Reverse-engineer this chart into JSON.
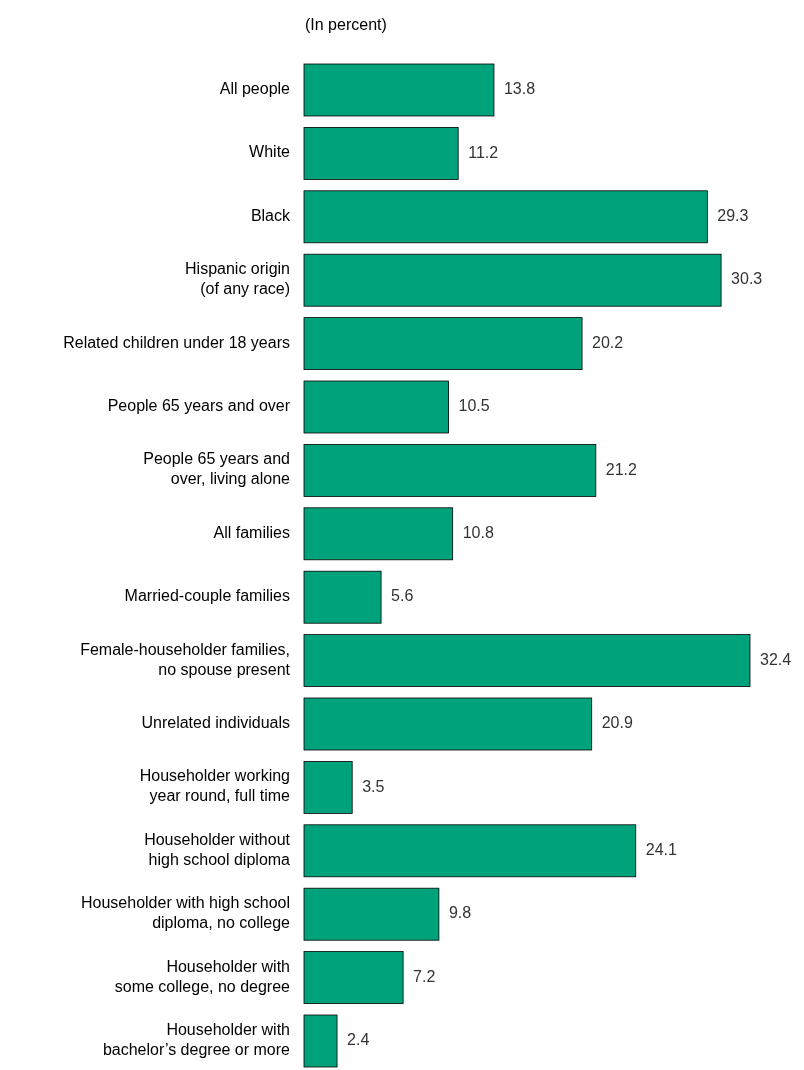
{
  "chart_data": {
    "type": "bar",
    "orientation": "horizontal",
    "subtitle": "(In percent)",
    "data_labels": true,
    "color": "#00a27b",
    "categories": [
      "All people",
      "White",
      "Black",
      "Hispanic origin\n(of any race)",
      "Related children under 18 years",
      "People 65 years and over",
      "People 65 years and\nover, living alone",
      "All families",
      "Married-couple families",
      "Female-householder families,\nno spouse present",
      "Unrelated individuals",
      "Householder working\nyear round, full time",
      "Householder without\nhigh school diploma",
      "Householder with high school\ndiploma, no college",
      "Householder with\nsome college, no degree",
      "Householder with\nbachelor’s degree or more"
    ],
    "values": [
      13.8,
      11.2,
      29.3,
      30.3,
      20.2,
      10.5,
      21.2,
      10.8,
      5.6,
      32.4,
      20.9,
      3.5,
      24.1,
      9.8,
      7.2,
      2.4
    ]
  }
}
